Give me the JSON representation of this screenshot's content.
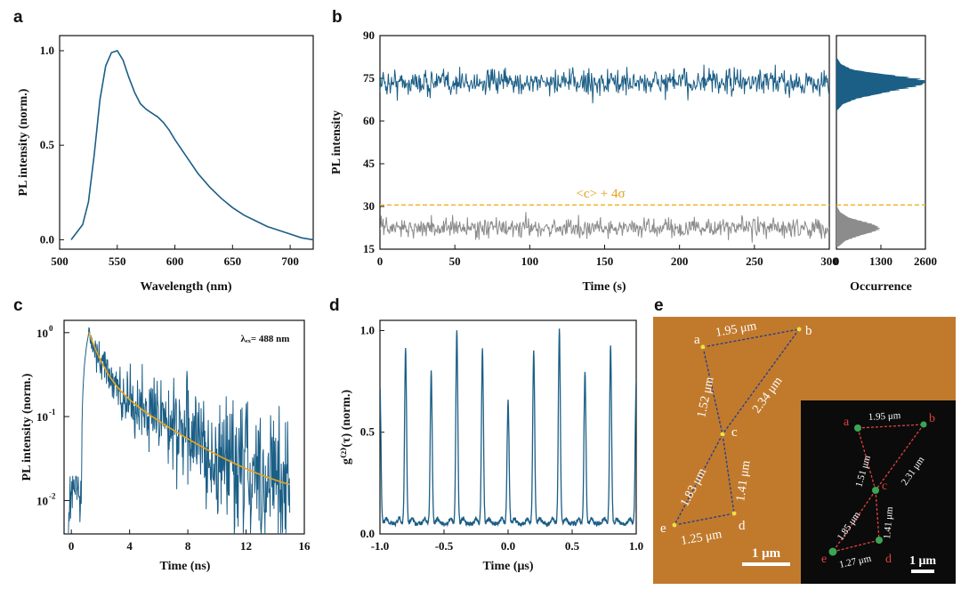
{
  "figure": {
    "panel_labels": [
      "a",
      "b",
      "c",
      "d",
      "e"
    ],
    "colors": {
      "series": "#1b5e86",
      "fit": "#e6a51a",
      "threshold": "#f0b429",
      "background_series": "#8c8c8c",
      "afm_substrate": "#c17a2c",
      "afm_dark": "#0b0b0b"
    }
  },
  "chart_data": [
    {
      "panel": "a",
      "type": "line",
      "title": "",
      "xlabel": "Wavelength (nm)",
      "ylabel": "PL intensity (norm.)",
      "xlim": [
        500,
        720
      ],
      "ylim": [
        -0.05,
        1.08
      ],
      "xticks": [
        500,
        550,
        600,
        650,
        700
      ],
      "yticks": [
        0.0,
        0.5,
        1.0
      ],
      "tick_labels_x": [
        "500",
        "550",
        "600",
        "650",
        "700"
      ],
      "tick_labels_y": [
        "0.0",
        "0.5",
        "1.0"
      ],
      "series": [
        {
          "x": [
            510,
            520,
            525,
            530,
            535,
            540,
            545,
            550,
            555,
            560,
            565,
            570,
            575,
            580,
            585,
            590,
            595,
            600,
            610,
            620,
            630,
            640,
            650,
            660,
            670,
            680,
            690,
            700,
            710,
            720
          ],
          "y": [
            0.0,
            0.08,
            0.2,
            0.45,
            0.74,
            0.92,
            0.99,
            1.0,
            0.95,
            0.86,
            0.78,
            0.72,
            0.69,
            0.67,
            0.65,
            0.62,
            0.58,
            0.53,
            0.44,
            0.35,
            0.28,
            0.22,
            0.17,
            0.13,
            0.1,
            0.07,
            0.05,
            0.03,
            0.01,
            0.0
          ]
        }
      ]
    },
    {
      "panel": "b",
      "type": "line",
      "title": "",
      "xlabel": "Time (s)",
      "ylabel": "PL intensity",
      "xlim": [
        0,
        300
      ],
      "ylim": [
        15,
        90
      ],
      "xticks": [
        0,
        50,
        100,
        150,
        200,
        250,
        300
      ],
      "yticks": [
        15,
        30,
        45,
        60,
        75,
        90
      ],
      "tick_labels_x": [
        "0",
        "50",
        "100",
        "150",
        "200",
        "250",
        "300"
      ],
      "tick_labels_y": [
        "15",
        "30",
        "45",
        "60",
        "75",
        "90"
      ],
      "threshold": {
        "y": 30.5,
        "label": "<c> + 4σ"
      },
      "series": [
        {
          "mean": 73.5,
          "spread": 3.2,
          "min": 66,
          "max": 81,
          "points": 700
        },
        {
          "mean": 22.5,
          "spread": 2.4,
          "min": 17,
          "max": 29,
          "points": 700
        }
      ]
    },
    {
      "panel": "b-histogram",
      "type": "bar",
      "title": "",
      "xlabel": "Occurrence",
      "xlim": [
        0,
        2600
      ],
      "xticks": [
        0,
        1300,
        2600
      ],
      "tick_labels_x": [
        "0",
        "1300",
        "2600"
      ],
      "ylim": [
        15,
        90
      ],
      "threshold": {
        "y": 30.5
      },
      "series": [
        {
          "bins_y": [
            64,
            66,
            68,
            70,
            72,
            73,
            74,
            75,
            76,
            77,
            78,
            80,
            82
          ],
          "counts": [
            40,
            180,
            600,
            1350,
            2150,
            2450,
            2550,
            2200,
            1600,
            950,
            450,
            120,
            20
          ]
        },
        {
          "bins_y": [
            16,
            18,
            20,
            21,
            22,
            23,
            24,
            25,
            26,
            28,
            30
          ],
          "counts": [
            60,
            250,
            700,
            1000,
            1200,
            1150,
            950,
            650,
            350,
            100,
            10
          ]
        }
      ]
    },
    {
      "panel": "c",
      "type": "line",
      "title": "",
      "xlabel": "Time (ns)",
      "ylabel": "PL intensity (norm.)",
      "scale_y": "log",
      "xlim": [
        -0.5,
        16
      ],
      "ylim": [
        0.004,
        1.4
      ],
      "xticks": [
        0,
        4,
        8,
        12,
        16
      ],
      "tick_labels_x": [
        "0",
        "4",
        "8",
        "12",
        "16"
      ],
      "tick_labels_y": [
        "10",
        "10",
        "10"
      ],
      "tick_exponents_y": [
        "0",
        "-1",
        "-2"
      ],
      "annotation": "λₑₓ= 488 nm",
      "series": [
        {
          "type": "noisy-decay",
          "onset": 1.2,
          "peak": 1.0,
          "tau1": 0.7,
          "a1": 0.7,
          "tau2": 3.6,
          "a2": 0.3,
          "baseline": 0.008,
          "points": 520
        },
        {
          "type": "fit",
          "tau1": 0.7,
          "a1": 0.7,
          "tau2": 3.6,
          "a2": 0.3,
          "baseline": 0.009
        }
      ]
    },
    {
      "panel": "d",
      "type": "line",
      "title": "",
      "xlabel": "Time (μs)",
      "ylabel": "g⁽²⁾(τ) (norm.)",
      "xlim": [
        -1.0,
        1.0
      ],
      "ylim": [
        0.0,
        1.05
      ],
      "xticks": [
        -1.0,
        -0.5,
        0.0,
        0.5,
        1.0
      ],
      "yticks": [
        0.0,
        0.5,
        1.0
      ],
      "tick_labels_x": [
        "-1.0",
        "-0.5",
        "0.0",
        "0.5",
        "1.0"
      ],
      "tick_labels_y": [
        "0.0",
        "0.5",
        "1.0"
      ],
      "series": [
        {
          "peaks_x": [
            -1.0,
            -0.8,
            -0.6,
            -0.4,
            -0.2,
            0.0,
            0.2,
            0.4,
            0.6,
            0.8,
            1.0
          ],
          "peaks_y": [
            0.72,
            0.91,
            0.79,
            1.0,
            0.9,
            0.65,
            0.9,
            1.0,
            0.79,
            0.91,
            0.75
          ],
          "baseline": 0.04
        }
      ]
    }
  ],
  "afm": {
    "points": [
      "a",
      "b",
      "c",
      "d",
      "e"
    ],
    "distances_large": [
      "1.95 μm",
      "2.34 μm",
      "1.52 μm",
      "1.83 μm",
      "1.41 μm",
      "1.25 μm"
    ],
    "distances_inset": [
      "1.95 μm",
      "2.31 μm",
      "1.51 μm",
      "1.85 μm",
      "1.41 μm",
      "1.27 μm"
    ],
    "scale_large": "1 μm",
    "scale_inset": "1 μm"
  }
}
